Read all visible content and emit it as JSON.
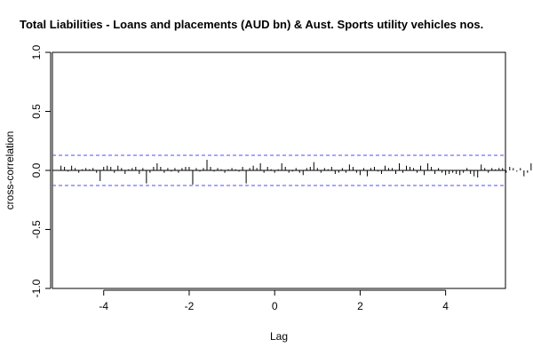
{
  "chart_data": {
    "type": "bar",
    "title": "Total Liabilities - Loans and placements (AUD bn) & Aust. Sports utility vehicles nos.",
    "xlabel": "Lag",
    "ylabel": "cross-correlation",
    "xlim": [
      -5.2,
      5.4
    ],
    "ylim": [
      -1.0,
      1.0
    ],
    "x_ticks": [
      -4,
      -2,
      0,
      2,
      4
    ],
    "x_tick_labels": [
      "-4",
      "-2",
      "0",
      "2",
      "4"
    ],
    "y_ticks": [
      -1.0,
      -0.5,
      0.0,
      0.5,
      1.0
    ],
    "y_tick_labels": [
      "-1.0",
      "-0.5",
      "0.0",
      "0.5",
      "1.0"
    ],
    "confidence_bounds": [
      0.128,
      -0.128
    ],
    "confidence_color": "#4d4dff",
    "bar_color": "#000000",
    "lag_start": -5.0,
    "lag_step": 0.08333,
    "values": [
      0.04,
      0.03,
      -0.01,
      0.04,
      0.02,
      -0.02,
      0.01,
      0.02,
      0.01,
      0.02,
      -0.02,
      -0.09,
      0.03,
      0.04,
      0.03,
      -0.02,
      0.04,
      0.02,
      -0.03,
      0.01,
      0.02,
      0.03,
      -0.03,
      0.02,
      -0.11,
      -0.02,
      0.03,
      0.06,
      0.03,
      -0.02,
      0.02,
      -0.01,
      0.02,
      -0.02,
      0.02,
      0.03,
      0.03,
      -0.12,
      0.02,
      -0.01,
      0.02,
      0.09,
      0.03,
      -0.01,
      0.02,
      0.01,
      -0.02,
      0.01,
      0.02,
      0.01,
      -0.01,
      0.03,
      -0.11,
      0.02,
      0.04,
      0.02,
      0.06,
      -0.02,
      0.03,
      0.01,
      -0.02,
      0.01,
      0.06,
      0.03,
      -0.02,
      -0.01,
      0.02,
      -0.02,
      -0.04,
      0.02,
      0.03,
      0.07,
      0.02,
      -0.02,
      0.02,
      0.01,
      0.03,
      -0.03,
      -0.02,
      0.02,
      -0.02,
      0.05,
      0.03,
      -0.02,
      -0.04,
      0.02,
      -0.05,
      0.02,
      0.03,
      -0.01,
      -0.03,
      0.04,
      0.02,
      0.02,
      -0.03,
      0.06,
      -0.02,
      0.04,
      0.03,
      0.02,
      -0.02,
      0.04,
      -0.04,
      0.06,
      0.03,
      -0.03,
      0.02,
      -0.02,
      -0.04,
      -0.03,
      -0.02,
      -0.03,
      -0.04,
      -0.02,
      0.02,
      -0.03,
      -0.05,
      -0.06,
      0.05,
      0.02,
      -0.02,
      0.02,
      0.01,
      0.02,
      0.02,
      -0.02,
      0.03,
      0.02,
      -0.01,
      0.02,
      -0.05,
      -0.02,
      0.06,
      0.03,
      0.06,
      0.02,
      0.03,
      -0.02,
      0.02,
      -0.03,
      0.02,
      -0.02,
      -0.04,
      -0.02,
      -0.08,
      0.03,
      0.02,
      -0.03,
      -0.01,
      0.02,
      -0.02,
      0.03,
      0.01,
      0.02,
      -0.02,
      -0.07,
      -0.03,
      0.03,
      -0.04,
      -0.06,
      0.04,
      0.03,
      -0.03,
      -0.02,
      0.02,
      -0.02,
      0.03,
      0.02,
      -0.02,
      -0.03,
      0.02,
      -0.05,
      0.07,
      0.03,
      0.02,
      -0.03,
      0.04,
      -0.04,
      0.02,
      -0.05,
      -0.02,
      0.03,
      -0.03,
      0.04,
      -0.05,
      -0.02,
      0.02,
      -0.04,
      -0.07,
      -0.05,
      0.04,
      0.03,
      -0.01,
      0.02,
      -0.02,
      0.04,
      0.02,
      -0.03,
      0.03,
      -0.04,
      0.05,
      -0.03,
      0.03,
      -0.02,
      0.03,
      -0.03,
      0.02,
      -0.06,
      0.02,
      0.03,
      -0.02,
      0.02,
      -0.02,
      0.03,
      -0.01,
      0.02,
      0.02,
      -0.03,
      0.05,
      0.02
    ]
  }
}
